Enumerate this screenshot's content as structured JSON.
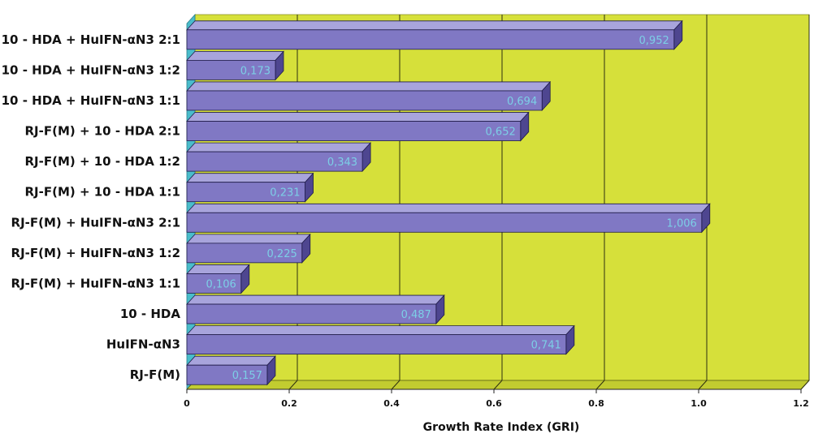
{
  "chart_data": {
    "type": "bar",
    "orientation": "horizontal",
    "style": "3d",
    "title": "",
    "xlabel": "Growth Rate Index (GRI)",
    "ylabel": "",
    "xlim": [
      0,
      1.2
    ],
    "x_ticks": [
      "0",
      "0.2",
      "0.4",
      "0.6",
      "0.8",
      "1.0",
      "1.2"
    ],
    "grid": true,
    "legend": "none",
    "categories": [
      "10 - HDA + HuIFN-αN3 2:1",
      "10 - HDA + HuIFN-αN3 1:2",
      "10 - HDA + HuIFN-αN3 1:1",
      "RJ-F(M) + 10 - HDA  2:1",
      "RJ-F(M) + 10 - HDA  1:2",
      "RJ-F(M) + 10 - HDA  1:1",
      "RJ-F(M) + HuIFN-αN3 2:1",
      "RJ-F(M) + HuIFN-αN3 1:2",
      "RJ-F(M) + HuIFN-αN3 1:1",
      "10 - HDA",
      "HuIFN-αN3",
      "RJ-F(M)"
    ],
    "values": [
      0.952,
      0.173,
      0.694,
      0.652,
      0.343,
      0.231,
      1.006,
      0.225,
      0.106,
      0.487,
      0.741,
      0.157
    ],
    "value_labels": [
      "0,952",
      "0,173",
      "0,694",
      "0,652",
      "0,343",
      "0,231",
      "1,006",
      "0,225",
      "0,106",
      "0,487",
      "0,741",
      "0,157"
    ],
    "colors": {
      "bar_front": "#8078c4",
      "bar_top": "#a8a4dc",
      "bar_side": "#4e4690",
      "plot_back": "#d6e03a",
      "plot_floor": "#c2cc30",
      "left_wall": "#49bccb",
      "gridline": "#2e3010",
      "data_label": "#7ccfe6"
    }
  }
}
